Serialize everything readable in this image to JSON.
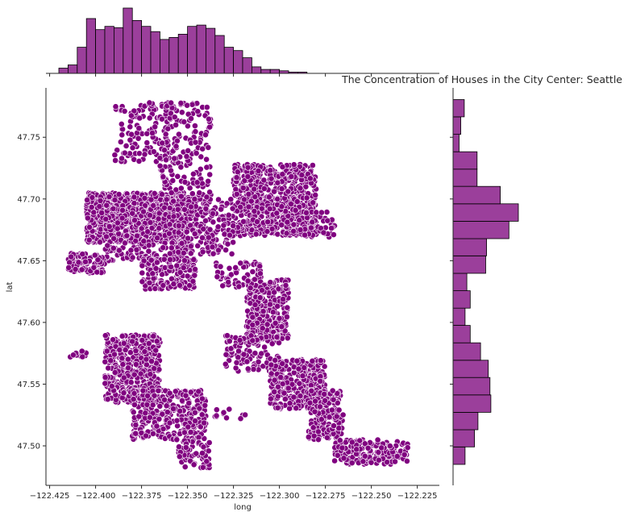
{
  "chart_data": {
    "type": "scatter",
    "variant": "jointplot with marginal histograms",
    "title": "The Concentration of Houses in the City Center: Seattle",
    "xlabel": "long",
    "ylabel": "lat",
    "xlim": [
      -122.427,
      -122.213
    ],
    "ylim": [
      47.468,
      47.79
    ],
    "xticks": [
      -122.425,
      -122.4,
      -122.375,
      -122.35,
      -122.325,
      -122.3,
      -122.275,
      -122.25,
      -122.225
    ],
    "xtick_labels": [
      "−122.425",
      "−122.400",
      "−122.375",
      "−122.350",
      "−122.325",
      "−122.300",
      "−122.275",
      "−122.250",
      "−122.225"
    ],
    "yticks": [
      47.5,
      47.55,
      47.6,
      47.65,
      47.7,
      47.75
    ],
    "ytick_labels": [
      "47.50",
      "47.55",
      "47.60",
      "47.65",
      "47.70",
      "47.75"
    ],
    "grid": false,
    "colors": {
      "point_fill": "#800080",
      "point_edge": "#ffffff",
      "hist_fill": "#9b3f9b",
      "hist_edge": "#000000",
      "axis": "#262626"
    },
    "scatter_clusters": [
      {
        "long": [
          -122.405,
          -122.35
        ],
        "lat": [
          47.665,
          47.705
        ],
        "density": 850
      },
      {
        "long": [
          -122.395,
          -122.35
        ],
        "lat": [
          47.65,
          47.695
        ],
        "density": 300
      },
      {
        "long": [
          -122.325,
          -122.28
        ],
        "lat": [
          47.67,
          47.728
        ],
        "density": 700
      },
      {
        "long": [
          -122.36,
          -122.325
        ],
        "lat": [
          47.655,
          47.7
        ],
        "density": 220
      },
      {
        "long": [
          -122.29,
          -122.27
        ],
        "lat": [
          47.668,
          47.69
        ],
        "density": 60
      },
      {
        "long": [
          -122.39,
          -122.36
        ],
        "lat": [
          47.73,
          47.778
        ],
        "density": 110
      },
      {
        "long": [
          -122.365,
          -122.337
        ],
        "lat": [
          47.69,
          47.778
        ],
        "density": 220
      },
      {
        "long": [
          -122.415,
          -122.395
        ],
        "lat": [
          47.64,
          47.656
        ],
        "density": 110
      },
      {
        "long": [
          -122.375,
          -122.345
        ],
        "lat": [
          47.627,
          47.652
        ],
        "density": 160
      },
      {
        "long": [
          -122.335,
          -122.31
        ],
        "lat": [
          47.628,
          47.65
        ],
        "density": 70
      },
      {
        "long": [
          -122.318,
          -122.295
        ],
        "lat": [
          47.585,
          47.635
        ],
        "density": 330
      },
      {
        "long": [
          -122.33,
          -122.3
        ],
        "lat": [
          47.56,
          47.59
        ],
        "density": 110
      },
      {
        "long": [
          -122.395,
          -122.365
        ],
        "lat": [
          47.535,
          47.59
        ],
        "density": 430
      },
      {
        "long": [
          -122.38,
          -122.34
        ],
        "lat": [
          47.505,
          47.545
        ],
        "density": 330
      },
      {
        "long": [
          -122.355,
          -122.338
        ],
        "lat": [
          47.482,
          47.505
        ],
        "density": 70
      },
      {
        "long": [
          -122.415,
          -122.405
        ],
        "lat": [
          47.572,
          47.578
        ],
        "density": 12
      },
      {
        "long": [
          -122.305,
          -122.275
        ],
        "lat": [
          47.53,
          47.57
        ],
        "density": 330
      },
      {
        "long": [
          -122.285,
          -122.265
        ],
        "lat": [
          47.505,
          47.545
        ],
        "density": 160
      },
      {
        "long": [
          -122.27,
          -122.23
        ],
        "lat": [
          47.485,
          47.505
        ],
        "density": 190
      },
      {
        "long": [
          -122.335,
          -122.318
        ],
        "lat": [
          47.522,
          47.53
        ],
        "density": 12
      }
    ],
    "marginal_x": {
      "bin_edges": [
        -122.42,
        -122.415,
        -122.41,
        -122.405,
        -122.4,
        -122.395,
        -122.39,
        -122.385,
        -122.38,
        -122.375,
        -122.37,
        -122.365,
        -122.36,
        -122.355,
        -122.35,
        -122.345,
        -122.34,
        -122.335,
        -122.33,
        -122.325,
        -122.32,
        -122.315,
        -122.31,
        -122.305,
        -122.3,
        -122.295,
        -122.29,
        -122.285,
        -122.28,
        -122.275,
        -122.27,
        -122.265,
        -122.26,
        -122.255,
        -122.25,
        -122.245,
        -122.24,
        -122.235,
        -122.23,
        -122.225,
        -122.22
      ],
      "counts": [
        8,
        13,
        40,
        84,
        67,
        72,
        70,
        100,
        81,
        72,
        64,
        52,
        55,
        60,
        72,
        74,
        69,
        58,
        40,
        35,
        24,
        10,
        6,
        6,
        4,
        2,
        2,
        0,
        0,
        0,
        0,
        0,
        0,
        0,
        0,
        0,
        0,
        0,
        0,
        0
      ]
    },
    "marginal_y": {
      "bin_edges": [
        47.485,
        47.4991,
        47.5131,
        47.5272,
        47.5413,
        47.5554,
        47.5694,
        47.5835,
        47.5976,
        47.6116,
        47.6257,
        47.6398,
        47.6539,
        47.6679,
        47.682,
        47.6961,
        47.7102,
        47.7242,
        47.7383,
        47.7524,
        47.7665,
        47.7805
      ],
      "counts": [
        14,
        25,
        29,
        44,
        43,
        41,
        32,
        20,
        14,
        20,
        16,
        38,
        39,
        65,
        76,
        55,
        28,
        28,
        7,
        9,
        13
      ]
    }
  }
}
